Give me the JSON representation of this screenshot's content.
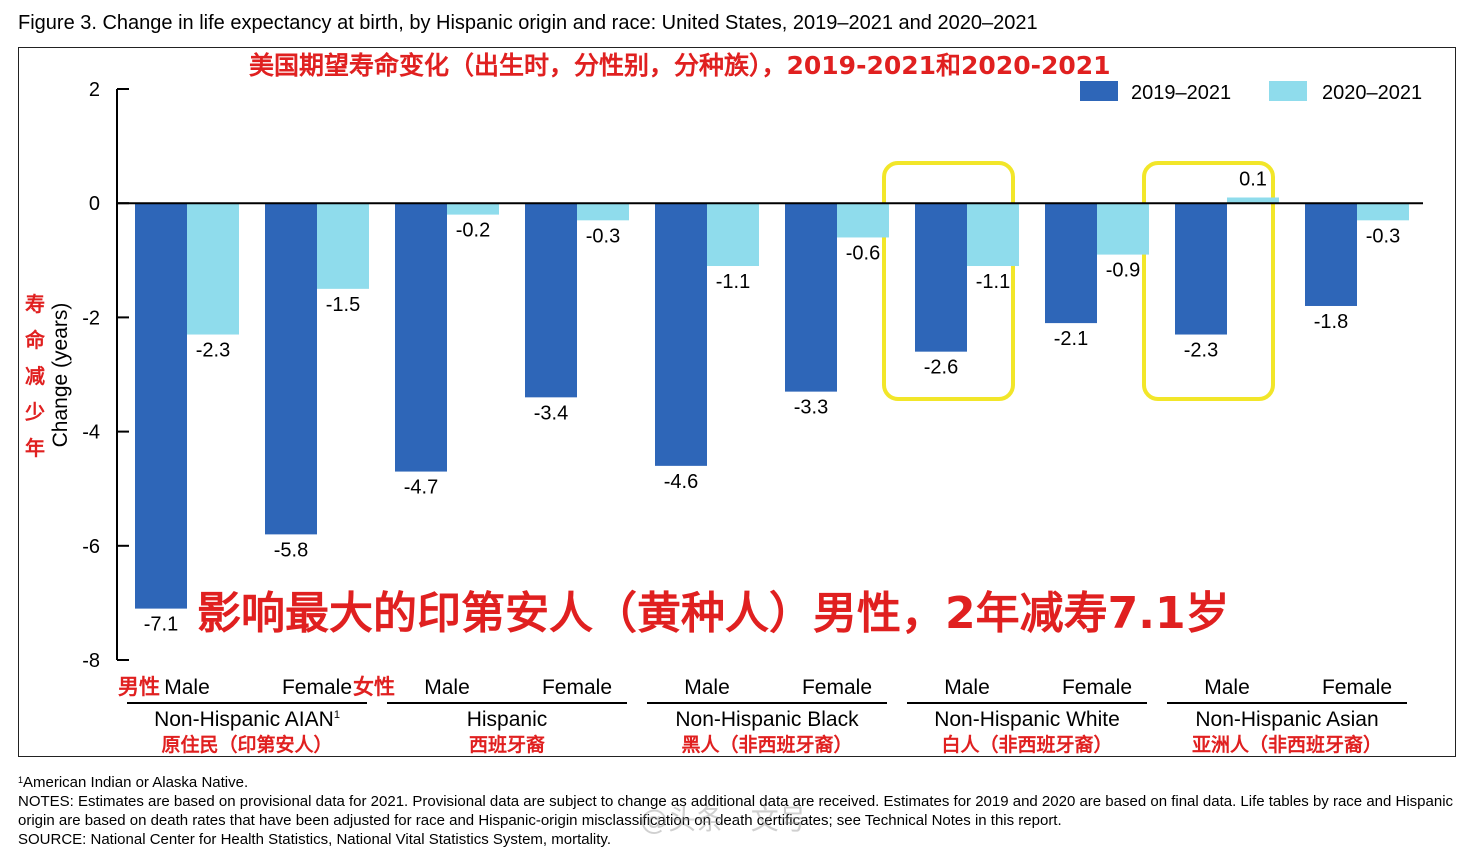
{
  "figure_title": "Figure 3. Change in life expectancy at birth, by Hispanic origin and race: United States, 2019–2021 and  2020–2021",
  "annotations": {
    "cn_title": "美国期望寿命变化（出生时，分性别，分种族），2019-2021和2020-2021",
    "big_note": "影响最大的印第安人（黄种人）男性，2年减寿7.1岁",
    "y_axis_cn": [
      "寿",
      "命",
      "减",
      "少",
      "年"
    ],
    "male_cn": "男性",
    "female_cn": "女性",
    "highlight_color": "#f2e629"
  },
  "colors": {
    "series_2019_2021": "#2e66b8",
    "series_2020_2021": "#8fdcec",
    "annotation_red": "#e02020"
  },
  "chart_data": {
    "type": "bar",
    "ylabel": "Change (years)",
    "ylim": [
      -8,
      2
    ],
    "yticks": [
      2,
      0,
      -2,
      -4,
      -6,
      -8
    ],
    "legend_position": "top-right",
    "categories": [
      {
        "sex": "Male",
        "group": "Non-Hispanic AIAN",
        "group_sup": "1",
        "group_cn": "原住民（印第安人）"
      },
      {
        "sex": "Female",
        "group": "Non-Hispanic AIAN",
        "group_sup": "1",
        "group_cn": "原住民（印第安人）"
      },
      {
        "sex": "Male",
        "group": "Hispanic",
        "group_sup": "",
        "group_cn": "西班牙裔"
      },
      {
        "sex": "Female",
        "group": "Hispanic",
        "group_sup": "",
        "group_cn": "西班牙裔"
      },
      {
        "sex": "Male",
        "group": "Non-Hispanic Black",
        "group_sup": "",
        "group_cn": "黑人（非西班牙裔）"
      },
      {
        "sex": "Female",
        "group": "Non-Hispanic Black",
        "group_sup": "",
        "group_cn": "黑人（非西班牙裔）"
      },
      {
        "sex": "Male",
        "group": "Non-Hispanic White",
        "group_sup": "",
        "group_cn": "白人（非西班牙裔）"
      },
      {
        "sex": "Female",
        "group": "Non-Hispanic White",
        "group_sup": "",
        "group_cn": "白人（非西班牙裔）"
      },
      {
        "sex": "Male",
        "group": "Non-Hispanic Asian",
        "group_sup": "",
        "group_cn": "亚洲人（非西班牙裔）"
      },
      {
        "sex": "Female",
        "group": "Non-Hispanic Asian",
        "group_sup": "",
        "group_cn": "亚洲人（非西班牙裔）"
      }
    ],
    "series": [
      {
        "name": "2019–2021",
        "values": [
          -7.1,
          -5.8,
          -4.7,
          -3.4,
          -4.6,
          -3.3,
          -2.6,
          -2.1,
          -2.3,
          -1.8
        ]
      },
      {
        "name": "2020–2021",
        "values": [
          -2.3,
          -1.5,
          -0.2,
          -0.3,
          -1.1,
          -0.6,
          -1.1,
          -0.9,
          0.1,
          -0.3
        ]
      }
    ],
    "highlighted_categories": [
      6,
      8
    ]
  },
  "footnotes": {
    "footnote_1_sup": "1",
    "footnote_1": "American Indian or Alaska Native.",
    "notes": "NOTES: Estimates are based on provisional data for 2021. Provisional data are subject to change as additional data are received. Estimates for 2019 and 2020 are based on final data. Life tables by race and Hispanic origin are based on death rates that have been adjusted for race and Hispanic-origin misclassification on death certificates; see Technical Notes in this report.",
    "source": "SOURCE: National Center for Health Statistics, National Vital Statistics System, mortality."
  },
  "watermark": "@头条 · 文号"
}
